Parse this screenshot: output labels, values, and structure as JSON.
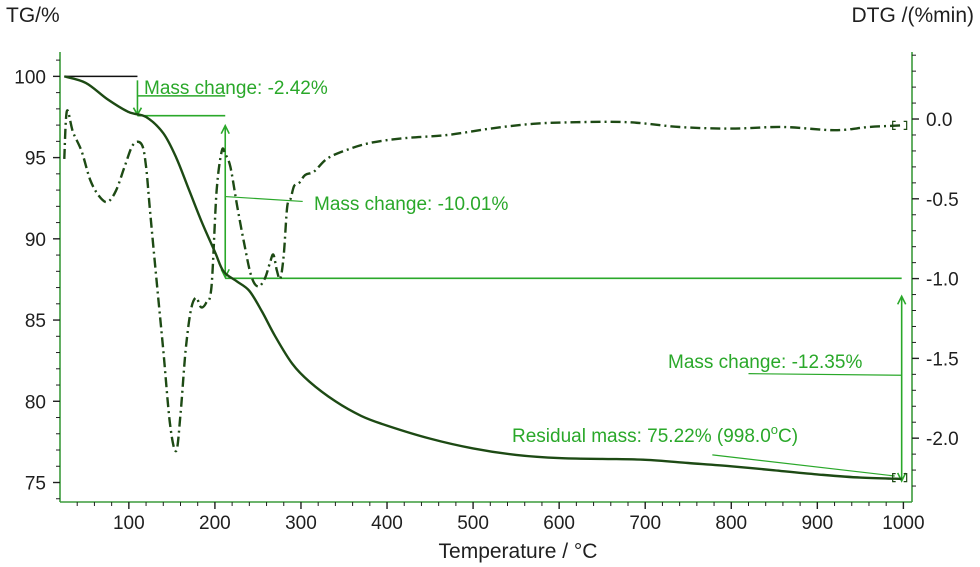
{
  "chart_data": {
    "type": "line",
    "x_axis": {
      "label": "Temperature / °C",
      "range": [
        20,
        1010
      ],
      "ticks": [
        100,
        200,
        300,
        400,
        500,
        600,
        700,
        800,
        900,
        1000
      ],
      "tick_labels": [
        "100",
        "200",
        "300",
        "400",
        "500",
        "600",
        "700",
        "800",
        "900",
        "1000"
      ]
    },
    "y_left": {
      "label": "TG/%",
      "range": [
        73.8,
        101.5
      ],
      "ticks": [
        75,
        80,
        85,
        90,
        95,
        100
      ],
      "tick_labels": [
        "75",
        "80",
        "85",
        "90",
        "95",
        "100"
      ]
    },
    "y_right": {
      "label": "DTG /(%min)",
      "range": [
        -2.4,
        0.42
      ],
      "ticks": [
        0.0,
        -0.5,
        -1.0,
        -1.5,
        -2.0
      ],
      "tick_labels": [
        "0.0",
        "-0.5",
        "-1.0",
        "-1.5",
        "-2.0"
      ]
    },
    "colors": {
      "tg": "#1d4a14",
      "dtg": "#1d4a14",
      "annotation": "#2aa82a",
      "axis": "#1f1f1f",
      "frame": "#3c9b3c"
    },
    "series": [
      {
        "id": "tg",
        "axis": "left",
        "style": "solid",
        "x": [
          25,
          50,
          75,
          100,
          120,
          140,
          155,
          170,
          185,
          200,
          210,
          225,
          240,
          255,
          270,
          290,
          310,
          340,
          370,
          400,
          450,
          500,
          550,
          600,
          650,
          700,
          750,
          800,
          850,
          900,
          950,
          998
        ],
        "y": [
          100.0,
          99.6,
          98.6,
          97.8,
          97.5,
          96.5,
          95.0,
          93.0,
          91.0,
          89.2,
          88.0,
          87.4,
          86.8,
          85.5,
          84.0,
          82.3,
          81.2,
          80.0,
          79.1,
          78.5,
          77.7,
          77.1,
          76.7,
          76.5,
          76.45,
          76.4,
          76.2,
          76.0,
          75.75,
          75.5,
          75.3,
          75.22
        ]
      },
      {
        "id": "dtg",
        "axis": "right",
        "style": "dash-dot",
        "x": [
          25,
          28,
          35,
          45,
          55,
          65,
          75,
          85,
          95,
          105,
          115,
          120,
          125,
          132,
          140,
          148,
          155,
          160,
          166,
          172,
          178,
          184,
          190,
          196,
          202,
          208,
          212,
          218,
          226,
          234,
          242,
          250,
          258,
          264,
          268,
          272,
          276,
          280,
          284,
          288,
          292,
          298,
          305,
          315,
          330,
          350,
          380,
          420,
          470,
          520,
          570,
          620,
          680,
          740,
          800,
          860,
          920,
          960,
          998
        ],
        "y": [
          -0.25,
          0.05,
          -0.08,
          -0.2,
          -0.38,
          -0.48,
          -0.52,
          -0.45,
          -0.3,
          -0.16,
          -0.16,
          -0.3,
          -0.6,
          -1.0,
          -1.45,
          -1.92,
          -2.08,
          -1.85,
          -1.45,
          -1.2,
          -1.12,
          -1.18,
          -1.15,
          -1.05,
          -0.45,
          -0.2,
          -0.22,
          -0.3,
          -0.55,
          -0.78,
          -0.98,
          -1.05,
          -1.0,
          -0.9,
          -0.85,
          -0.95,
          -1.0,
          -0.85,
          -0.55,
          -0.5,
          -0.42,
          -0.4,
          -0.35,
          -0.33,
          -0.25,
          -0.2,
          -0.15,
          -0.12,
          -0.1,
          -0.06,
          -0.03,
          -0.02,
          -0.02,
          -0.05,
          -0.06,
          -0.05,
          -0.07,
          -0.05,
          -0.04
        ]
      }
    ],
    "annotations": {
      "mass_change_1": "Mass change: -2.42%",
      "mass_change_2": "Mass change: -10.01%",
      "mass_change_3": "Mass change: -12.35%",
      "residual_prefix": "Residual mass: 75.22% (998.0",
      "residual_degree": "o",
      "residual_suffix": "C)"
    },
    "step_levels": {
      "tg_start": 100.0,
      "after_step1": 97.58,
      "after_step2": 87.57,
      "residual": 75.22,
      "step1_temp": 110,
      "step2_temp": 212,
      "end_temp": 998
    },
    "grid": false,
    "legend": "none"
  }
}
